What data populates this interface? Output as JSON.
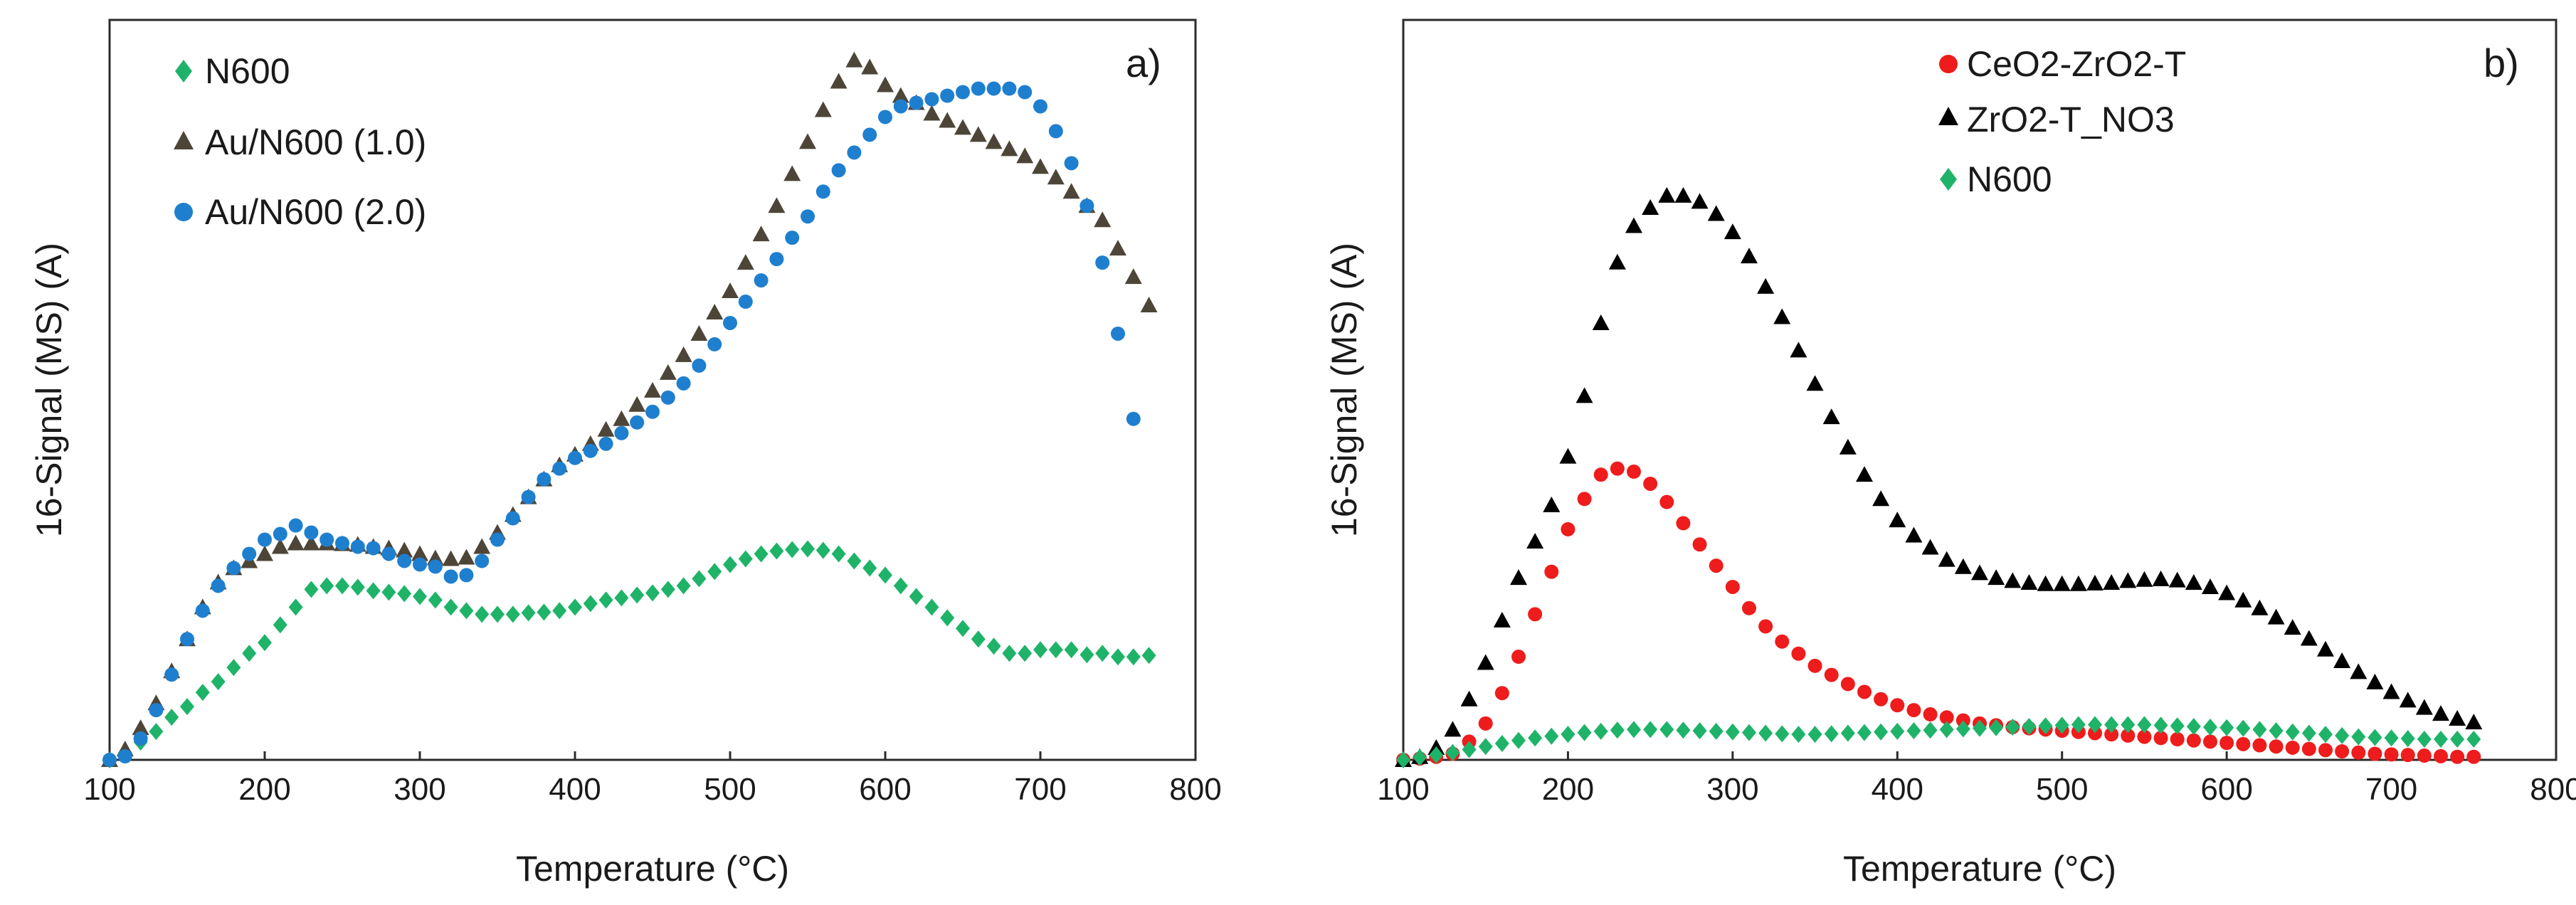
{
  "figure": {
    "panels": [
      "a)",
      "b)"
    ]
  },
  "chart_data": [
    {
      "type": "scatter",
      "panel_label": "a)",
      "xlabel": "Temperature (°C)",
      "ylabel": "16-Signal (MS) (A)",
      "xlim": [
        100,
        800
      ],
      "ylim": [
        0,
        1.0
      ],
      "xticks": [
        100,
        200,
        300,
        400,
        500,
        600,
        700,
        800
      ],
      "grid": false,
      "legend_position": "top-left",
      "series": [
        {
          "name": "N600",
          "marker": "diamond",
          "color": "#1fb36a",
          "x": [
            100,
            110,
            120,
            130,
            140,
            150,
            160,
            170,
            180,
            190,
            200,
            210,
            220,
            230,
            240,
            250,
            260,
            270,
            280,
            290,
            300,
            310,
            320,
            330,
            340,
            350,
            360,
            370,
            380,
            390,
            400,
            410,
            420,
            430,
            440,
            450,
            460,
            470,
            480,
            490,
            500,
            510,
            520,
            530,
            540,
            550,
            560,
            570,
            580,
            590,
            600,
            610,
            620,
            630,
            640,
            650,
            660,
            670,
            680,
            690,
            700,
            710,
            720,
            730,
            740,
            750,
            760,
            770
          ],
          "values": [
            0.0,
            0.01,
            0.025,
            0.04,
            0.06,
            0.075,
            0.095,
            0.11,
            0.13,
            0.15,
            0.165,
            0.19,
            0.215,
            0.24,
            0.245,
            0.245,
            0.243,
            0.238,
            0.236,
            0.234,
            0.23,
            0.225,
            0.215,
            0.21,
            0.205,
            0.205,
            0.205,
            0.207,
            0.208,
            0.21,
            0.215,
            0.22,
            0.225,
            0.228,
            0.232,
            0.235,
            0.24,
            0.245,
            0.255,
            0.265,
            0.275,
            0.283,
            0.29,
            0.294,
            0.296,
            0.297,
            0.295,
            0.29,
            0.28,
            0.27,
            0.26,
            0.245,
            0.23,
            0.215,
            0.2,
            0.185,
            0.17,
            0.16,
            0.15,
            0.15,
            0.155,
            0.155,
            0.155,
            0.148,
            0.15,
            0.145,
            0.145,
            0.147
          ]
        },
        {
          "name": "Au/N600 (1.0)",
          "marker": "triangle",
          "color": "#4d4638",
          "x": [
            100,
            110,
            120,
            130,
            140,
            150,
            160,
            170,
            180,
            190,
            200,
            210,
            220,
            230,
            240,
            250,
            260,
            270,
            280,
            290,
            300,
            310,
            320,
            330,
            340,
            350,
            360,
            370,
            380,
            390,
            400,
            410,
            420,
            430,
            440,
            450,
            460,
            470,
            480,
            490,
            500,
            510,
            520,
            530,
            540,
            550,
            560,
            570,
            580,
            590,
            600,
            610,
            620,
            630,
            640,
            650,
            660,
            670,
            680,
            690,
            700,
            710,
            720,
            730,
            740,
            750,
            760,
            770
          ],
          "values": [
            0.0,
            0.015,
            0.045,
            0.08,
            0.125,
            0.17,
            0.215,
            0.25,
            0.27,
            0.28,
            0.29,
            0.3,
            0.305,
            0.305,
            0.305,
            0.304,
            0.303,
            0.3,
            0.298,
            0.295,
            0.29,
            0.284,
            0.283,
            0.285,
            0.3,
            0.32,
            0.345,
            0.37,
            0.395,
            0.415,
            0.43,
            0.445,
            0.465,
            0.48,
            0.5,
            0.52,
            0.545,
            0.57,
            0.6,
            0.63,
            0.66,
            0.7,
            0.74,
            0.78,
            0.825,
            0.87,
            0.915,
            0.955,
            0.985,
            0.975,
            0.95,
            0.935,
            0.925,
            0.91,
            0.9,
            0.89,
            0.88,
            0.87,
            0.86,
            0.85,
            0.835,
            0.82,
            0.8,
            0.78,
            0.76,
            0.72,
            0.68,
            0.64
          ]
        },
        {
          "name": "Au/N600 (2.0)",
          "marker": "circle",
          "color": "#1f7fcf",
          "x": [
            100,
            110,
            120,
            130,
            140,
            150,
            160,
            170,
            180,
            190,
            200,
            210,
            220,
            230,
            240,
            250,
            260,
            270,
            280,
            290,
            300,
            310,
            320,
            330,
            340,
            350,
            360,
            370,
            380,
            390,
            400,
            410,
            420,
            430,
            440,
            450,
            460,
            470,
            480,
            490,
            500,
            510,
            520,
            530,
            540,
            550,
            560,
            570,
            580,
            590,
            600,
            610,
            620,
            630,
            640,
            650,
            660,
            670,
            680,
            690,
            700,
            710,
            720,
            730,
            740,
            750,
            760
          ],
          "values": [
            0.0,
            0.005,
            0.03,
            0.07,
            0.12,
            0.17,
            0.21,
            0.245,
            0.27,
            0.29,
            0.31,
            0.318,
            0.33,
            0.32,
            0.31,
            0.305,
            0.3,
            0.298,
            0.29,
            0.28,
            0.275,
            0.272,
            0.258,
            0.26,
            0.28,
            0.31,
            0.34,
            0.37,
            0.395,
            0.41,
            0.425,
            0.435,
            0.445,
            0.46,
            0.475,
            0.49,
            0.51,
            0.53,
            0.555,
            0.585,
            0.615,
            0.645,
            0.675,
            0.705,
            0.735,
            0.765,
            0.8,
            0.83,
            0.855,
            0.88,
            0.905,
            0.92,
            0.925,
            0.93,
            0.935,
            0.94,
            0.945,
            0.945,
            0.945,
            0.94,
            0.92,
            0.885,
            0.84,
            0.78,
            0.7,
            0.6,
            0.48
          ]
        }
      ]
    },
    {
      "type": "scatter",
      "panel_label": "b)",
      "xlabel": "Temperature (°C)",
      "ylabel": "16-Signal (MS) (A)",
      "xlim": [
        100,
        800
      ],
      "ylim": [
        0,
        1.0
      ],
      "xticks": [
        100,
        200,
        300,
        400,
        500,
        600,
        700,
        800
      ],
      "grid": false,
      "legend_position": "top-center",
      "series": [
        {
          "name": "CeO2-ZrO2-T",
          "marker": "circle",
          "color": "#ee1c1c",
          "x": [
            100,
            110,
            120,
            130,
            140,
            150,
            160,
            170,
            180,
            190,
            200,
            210,
            220,
            230,
            240,
            250,
            260,
            270,
            280,
            290,
            300,
            310,
            320,
            330,
            340,
            350,
            360,
            370,
            380,
            390,
            400,
            410,
            420,
            430,
            440,
            450,
            460,
            470,
            480,
            490,
            500,
            510,
            520,
            530,
            540,
            550,
            560,
            570,
            580,
            590,
            600,
            610,
            620,
            630,
            640,
            650,
            660,
            670,
            680,
            690,
            700,
            710,
            720,
            730,
            740,
            750
          ],
          "values": [
            0.0,
            0.002,
            0.005,
            0.01,
            0.03,
            0.06,
            0.11,
            0.17,
            0.24,
            0.31,
            0.38,
            0.43,
            0.47,
            0.48,
            0.475,
            0.455,
            0.425,
            0.39,
            0.355,
            0.32,
            0.285,
            0.25,
            0.22,
            0.195,
            0.175,
            0.155,
            0.14,
            0.125,
            0.112,
            0.1,
            0.09,
            0.082,
            0.075,
            0.07,
            0.065,
            0.06,
            0.057,
            0.054,
            0.052,
            0.05,
            0.048,
            0.046,
            0.044,
            0.042,
            0.04,
            0.038,
            0.036,
            0.034,
            0.032,
            0.03,
            0.028,
            0.026,
            0.024,
            0.022,
            0.02,
            0.018,
            0.016,
            0.014,
            0.012,
            0.01,
            0.009,
            0.008,
            0.007,
            0.006,
            0.005,
            0.005
          ]
        },
        {
          "name": "ZrO2-T_NO3",
          "marker": "triangle",
          "color": "#000000",
          "x": [
            100,
            110,
            120,
            130,
            140,
            150,
            160,
            170,
            180,
            190,
            200,
            210,
            220,
            230,
            240,
            250,
            260,
            270,
            280,
            290,
            300,
            310,
            320,
            330,
            340,
            350,
            360,
            370,
            380,
            390,
            400,
            410,
            420,
            430,
            440,
            450,
            460,
            470,
            480,
            490,
            500,
            510,
            520,
            530,
            540,
            550,
            560,
            570,
            580,
            590,
            600,
            610,
            620,
            630,
            640,
            650,
            660,
            670,
            680,
            690,
            700,
            710,
            720,
            730,
            740,
            750
          ],
          "values": [
            0.0,
            0.005,
            0.02,
            0.05,
            0.1,
            0.16,
            0.23,
            0.3,
            0.36,
            0.42,
            0.5,
            0.6,
            0.72,
            0.82,
            0.88,
            0.91,
            0.93,
            0.93,
            0.92,
            0.9,
            0.87,
            0.83,
            0.78,
            0.73,
            0.675,
            0.62,
            0.565,
            0.515,
            0.47,
            0.43,
            0.395,
            0.37,
            0.35,
            0.33,
            0.318,
            0.308,
            0.3,
            0.295,
            0.292,
            0.29,
            0.29,
            0.29,
            0.291,
            0.292,
            0.295,
            0.297,
            0.298,
            0.296,
            0.292,
            0.285,
            0.275,
            0.263,
            0.25,
            0.235,
            0.218,
            0.2,
            0.182,
            0.163,
            0.145,
            0.128,
            0.112,
            0.098,
            0.086,
            0.076,
            0.068,
            0.062
          ]
        },
        {
          "name": "N600",
          "marker": "diamond",
          "color": "#1fb36a",
          "x": [
            100,
            110,
            120,
            130,
            140,
            150,
            160,
            170,
            180,
            190,
            200,
            210,
            220,
            230,
            240,
            250,
            260,
            270,
            280,
            290,
            300,
            310,
            320,
            330,
            340,
            350,
            360,
            370,
            380,
            390,
            400,
            410,
            420,
            430,
            440,
            450,
            460,
            470,
            480,
            490,
            500,
            510,
            520,
            530,
            540,
            550,
            560,
            570,
            580,
            590,
            600,
            610,
            620,
            630,
            640,
            650,
            660,
            670,
            680,
            690,
            700,
            710,
            720,
            730,
            740,
            750
          ],
          "values": [
            0.0,
            0.004,
            0.008,
            0.012,
            0.017,
            0.022,
            0.027,
            0.032,
            0.036,
            0.039,
            0.042,
            0.045,
            0.047,
            0.049,
            0.05,
            0.05,
            0.05,
            0.049,
            0.048,
            0.047,
            0.046,
            0.045,
            0.044,
            0.043,
            0.042,
            0.042,
            0.043,
            0.044,
            0.045,
            0.046,
            0.047,
            0.048,
            0.049,
            0.05,
            0.051,
            0.052,
            0.053,
            0.054,
            0.055,
            0.056,
            0.057,
            0.058,
            0.058,
            0.058,
            0.058,
            0.058,
            0.057,
            0.056,
            0.055,
            0.054,
            0.053,
            0.052,
            0.05,
            0.048,
            0.046,
            0.044,
            0.042,
            0.04,
            0.038,
            0.037,
            0.036,
            0.035,
            0.034,
            0.034,
            0.034,
            0.034
          ]
        }
      ]
    }
  ]
}
